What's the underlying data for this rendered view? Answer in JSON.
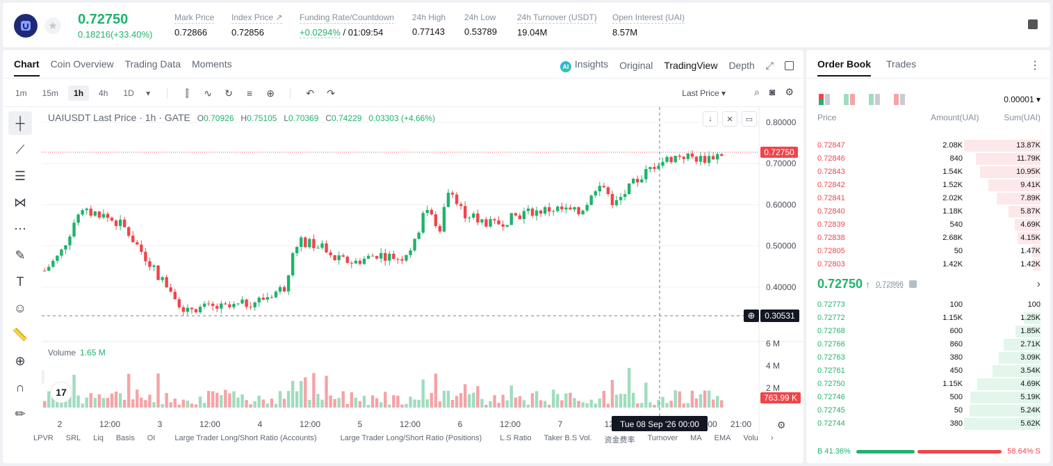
{
  "header": {
    "last_price": "0.72750",
    "change": "0.18216(+33.40%)",
    "stats": [
      {
        "label": "Mark Price",
        "value": "0.72866"
      },
      {
        "label": "Index Price ↗",
        "value": "0.72856"
      },
      {
        "label": "Funding Rate/Countdown",
        "value": "+0.0294% / 01:09:54"
      },
      {
        "label": "24h High",
        "value": "0.77143"
      },
      {
        "label": "24h Low",
        "value": "0.53789"
      },
      {
        "label": "24h Turnover (USDT)",
        "value": "19.04M"
      },
      {
        "label": "Open Interest (UAI)",
        "value": "8.57M"
      }
    ],
    "funding_rate": "+0.0294%",
    "countdown": "/ 01:09:54"
  },
  "chart_tabs": [
    "Chart",
    "Coin Overview",
    "Trading Data",
    "Moments"
  ],
  "views": {
    "insights": "Insights",
    "original": "Original",
    "tradingview": "TradingView",
    "depth": "Depth"
  },
  "intervals": [
    "1m",
    "15m",
    "1h",
    "4h",
    "1D"
  ],
  "active_interval": "1h",
  "price_source": "Last Price",
  "legend": {
    "symbol": "UAIUSDT Last Price · 1h · GATE",
    "o": "0.70926",
    "h": "0.75105",
    "l": "0.70369",
    "c": "0.74229",
    "chg": "0.03303 (+4.66%)"
  },
  "volume_legend": {
    "label": "Volume",
    "value": "1.65 M"
  },
  "price_tag": "0.72750",
  "cursor_price": "0.30531",
  "cursor_volume": "763.99 K",
  "cursor_time": "Tue 08 Sep '26   00:00",
  "price_axis": [
    "0.80000",
    "0.70000",
    "0.60000",
    "0.50000",
    "0.40000"
  ],
  "volume_axis": [
    "6 M",
    "4 M",
    "2 M"
  ],
  "time_axis": [
    "2",
    "12:00",
    "3",
    "12:00",
    "4",
    "12:00",
    "5",
    "12:00",
    "6",
    "12:00",
    "7",
    "12:",
    "00",
    "21:00"
  ],
  "indicators": [
    "LPVR",
    "SRL",
    "Liq",
    "Basis",
    "OI",
    "Large Trader Long/Short Ratio (Accounts)",
    "Large Trader Long/Short Ratio (Positions)",
    "L.S Ratio",
    "Taker B.S Vol.",
    "资金费率",
    "Turnover",
    "MA",
    "EMA",
    "Volu"
  ],
  "order_book": {
    "tabs": [
      "Order Book",
      "Trades"
    ],
    "tick": "0.00001",
    "headers": {
      "price": "Price",
      "amount": "Amount(UAI)",
      "sum": "Sum(UAI)"
    },
    "asks": [
      {
        "price": "0.72847",
        "amount": "2.08K",
        "sum": "13.87K",
        "depth": 1.0
      },
      {
        "price": "0.72846",
        "amount": "840",
        "sum": "11.79K",
        "depth": 0.85
      },
      {
        "price": "0.72843",
        "amount": "1.54K",
        "sum": "10.95K",
        "depth": 0.79
      },
      {
        "price": "0.72842",
        "amount": "1.52K",
        "sum": "9.41K",
        "depth": 0.68
      },
      {
        "price": "0.72841",
        "amount": "2.02K",
        "sum": "7.89K",
        "depth": 0.57
      },
      {
        "price": "0.72840",
        "amount": "1.18K",
        "sum": "5.87K",
        "depth": 0.42
      },
      {
        "price": "0.72839",
        "amount": "540",
        "sum": "4.69K",
        "depth": 0.34
      },
      {
        "price": "0.72838",
        "amount": "2.68K",
        "sum": "4.15K",
        "depth": 0.3
      },
      {
        "price": "0.72805",
        "amount": "50",
        "sum": "1.47K",
        "depth": 0.11
      },
      {
        "price": "0.72803",
        "amount": "1.42K",
        "sum": "1.42K",
        "depth": 0.1
      }
    ],
    "mid_price": "0.72750",
    "mark_price": "0.72866",
    "bids": [
      {
        "price": "0.72773",
        "amount": "100",
        "sum": "100",
        "depth": 0.02
      },
      {
        "price": "0.72772",
        "amount": "1.15K",
        "sum": "1.25K",
        "depth": 0.22
      },
      {
        "price": "0.72768",
        "amount": "600",
        "sum": "1.85K",
        "depth": 0.33
      },
      {
        "price": "0.72766",
        "amount": "860",
        "sum": "2.71K",
        "depth": 0.48
      },
      {
        "price": "0.72763",
        "amount": "380",
        "sum": "3.09K",
        "depth": 0.55
      },
      {
        "price": "0.72761",
        "amount": "450",
        "sum": "3.54K",
        "depth": 0.63
      },
      {
        "price": "0.72750",
        "amount": "1.15K",
        "sum": "4.69K",
        "depth": 0.83
      },
      {
        "price": "0.72746",
        "amount": "500",
        "sum": "5.19K",
        "depth": 0.92
      },
      {
        "price": "0.72745",
        "amount": "50",
        "sum": "5.24K",
        "depth": 0.93
      },
      {
        "price": "0.72744",
        "amount": "380",
        "sum": "5.62K",
        "depth": 1.0
      }
    ],
    "buy_ratio_label": "B 41.36%",
    "sell_ratio_label": "58.64% S",
    "buy_ratio": 0.4136
  },
  "colors": {
    "up": "#20b26c",
    "down": "#ef454a",
    "up_vol": "#9fdcbe",
    "down_vol": "#f5a3a6"
  }
}
